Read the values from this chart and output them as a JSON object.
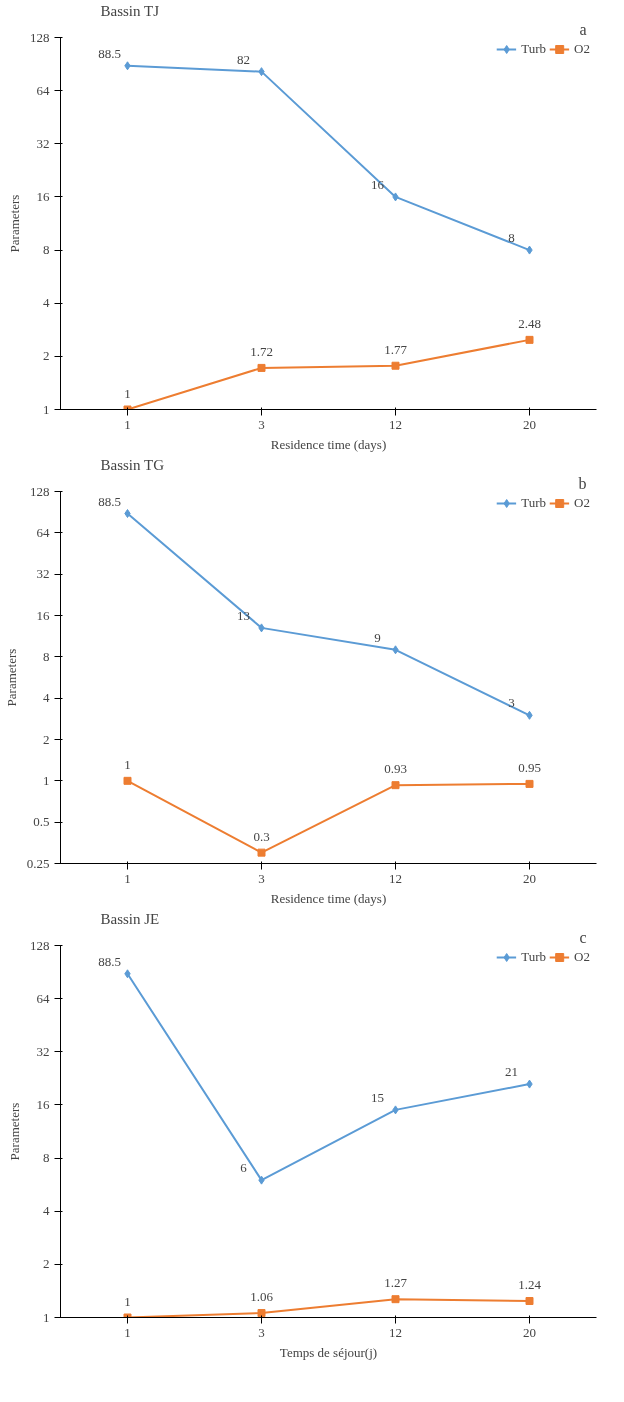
{
  "chart_data": [
    {
      "type": "line",
      "title": "Bassin TJ",
      "xlabel": "Residence time (days)",
      "ylabel": "Parameters",
      "annotations": [
        "a"
      ],
      "categories": [
        "1",
        "3",
        "12",
        "20"
      ],
      "log": "y",
      "ylim": [
        1,
        128
      ],
      "yticks": [
        1,
        2,
        4,
        8,
        16,
        32,
        64,
        128
      ],
      "data_labels": true,
      "legend": "top right",
      "grid": false,
      "series": [
        {
          "name": "Turb",
          "color": "#5b9bd5",
          "marker": "diamond",
          "values": [
            88.5,
            82,
            16,
            8
          ]
        },
        {
          "name": "O2",
          "color": "#ed7d31",
          "marker": "square",
          "values": [
            1,
            1.72,
            1.77,
            2.48
          ]
        }
      ]
    },
    {
      "type": "line",
      "title": "Bassin TG",
      "xlabel": "Residence time (days)",
      "ylabel": "Parameters",
      "annotations": [
        "b"
      ],
      "categories": [
        "1",
        "3",
        "12",
        "20"
      ],
      "log": "y",
      "ylim": [
        0.25,
        128
      ],
      "yticks": [
        0.25,
        0.5,
        1,
        2,
        4,
        8,
        16,
        32,
        64,
        128
      ],
      "data_labels": true,
      "legend": "top right",
      "grid": false,
      "series": [
        {
          "name": "Turb",
          "color": "#5b9bd5",
          "marker": "diamond",
          "values": [
            88.5,
            13,
            9,
            3
          ]
        },
        {
          "name": "O2",
          "color": "#ed7d31",
          "marker": "square",
          "values": [
            1,
            0.3,
            0.93,
            0.95
          ]
        }
      ]
    },
    {
      "type": "line",
      "title": "Bassin JE",
      "xlabel": "Temps de séjour(j)",
      "ylabel": "Parameters",
      "annotations": [
        "c"
      ],
      "categories": [
        "1",
        "3",
        "12",
        "20"
      ],
      "log": "y",
      "ylim": [
        1,
        128
      ],
      "yticks": [
        1,
        2,
        4,
        8,
        16,
        32,
        64,
        128
      ],
      "data_labels": true,
      "legend": "top right",
      "grid": false,
      "series": [
        {
          "name": "Turb",
          "color": "#5b9bd5",
          "marker": "diamond",
          "values": [
            88.5,
            6,
            15,
            21
          ]
        },
        {
          "name": "O2",
          "color": "#ed7d31",
          "marker": "square",
          "values": [
            1,
            1.06,
            1.27,
            1.24
          ]
        }
      ]
    }
  ]
}
